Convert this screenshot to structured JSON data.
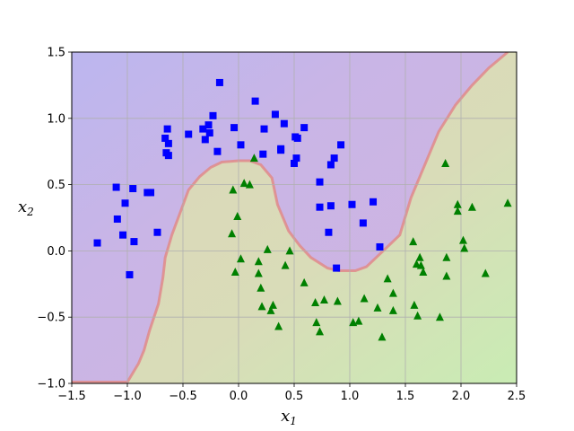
{
  "chart_data": {
    "type": "scatter",
    "title": "",
    "xlabel": "x",
    "xlabel_sub": "1",
    "ylabel": "x",
    "ylabel_sub": "2",
    "xlim": [
      -1.5,
      2.5
    ],
    "ylim": [
      -1.0,
      1.5
    ],
    "xticks": [
      -1.5,
      -1.0,
      -0.5,
      0.0,
      0.5,
      1.0,
      1.5,
      2.0,
      2.5
    ],
    "xtick_labels": [
      "−1.5",
      "−1.0",
      "−0.5",
      "0.0",
      "0.5",
      "1.0",
      "1.5",
      "2.0",
      "2.5"
    ],
    "yticks": [
      -1.0,
      -0.5,
      0.0,
      0.5,
      1.0,
      1.5
    ],
    "ytick_labels": [
      "−1.0",
      "−0.5",
      "0.0",
      "0.5",
      "1.0",
      "1.5"
    ],
    "grid": true,
    "colors": {
      "class0_marker": "#0000ff",
      "class1_marker": "#008000",
      "region_class0": "#c9b5e6",
      "region_class1": "#d9dcb8",
      "region_class0_corner": "#bcb6ef",
      "region_class1_corner": "#c9ecb4",
      "boundary": "#e08a8a"
    },
    "decision_boundary": [
      [
        -1.5,
        -0.99
      ],
      [
        -1.0,
        -0.99
      ],
      [
        -0.9,
        -0.85
      ],
      [
        -0.85,
        -0.75
      ],
      [
        -0.8,
        -0.6
      ],
      [
        -0.72,
        -0.4
      ],
      [
        -0.68,
        -0.2
      ],
      [
        -0.66,
        -0.05
      ],
      [
        -0.6,
        0.12
      ],
      [
        -0.52,
        0.3
      ],
      [
        -0.45,
        0.46
      ],
      [
        -0.35,
        0.56
      ],
      [
        -0.25,
        0.63
      ],
      [
        -0.15,
        0.67
      ],
      [
        0.0,
        0.68
      ],
      [
        0.1,
        0.68
      ],
      [
        0.2,
        0.65
      ],
      [
        0.3,
        0.55
      ],
      [
        0.35,
        0.35
      ],
      [
        0.45,
        0.15
      ],
      [
        0.55,
        0.04
      ],
      [
        0.65,
        -0.05
      ],
      [
        0.8,
        -0.13
      ],
      [
        0.9,
        -0.15
      ],
      [
        1.05,
        -0.15
      ],
      [
        1.15,
        -0.12
      ],
      [
        1.3,
        0.0
      ],
      [
        1.45,
        0.12
      ],
      [
        1.55,
        0.4
      ],
      [
        1.7,
        0.7
      ],
      [
        1.8,
        0.9
      ],
      [
        1.95,
        1.1
      ],
      [
        2.1,
        1.25
      ],
      [
        2.25,
        1.38
      ],
      [
        2.35,
        1.45
      ],
      [
        2.42,
        1.5
      ]
    ],
    "series": [
      {
        "marker": "square",
        "points": [
          [
            -1.27,
            0.06
          ],
          [
            -1.1,
            0.48
          ],
          [
            -1.09,
            0.24
          ],
          [
            -1.04,
            0.12
          ],
          [
            -1.02,
            0.36
          ],
          [
            -0.98,
            -0.18
          ],
          [
            -0.95,
            0.47
          ],
          [
            -0.94,
            0.07
          ],
          [
            -0.82,
            0.44
          ],
          [
            -0.79,
            0.44
          ],
          [
            -0.73,
            0.14
          ],
          [
            -0.66,
            0.85
          ],
          [
            -0.65,
            0.74
          ],
          [
            -0.64,
            0.92
          ],
          [
            -0.63,
            0.81
          ],
          [
            -0.63,
            0.72
          ],
          [
            -0.45,
            0.88
          ],
          [
            -0.32,
            0.92
          ],
          [
            -0.3,
            0.84
          ],
          [
            -0.27,
            0.95
          ],
          [
            -0.26,
            0.89
          ],
          [
            -0.23,
            1.02
          ],
          [
            -0.19,
            0.75
          ],
          [
            -0.17,
            1.27
          ],
          [
            -0.04,
            0.93
          ],
          [
            0.02,
            0.8
          ],
          [
            0.15,
            1.13
          ],
          [
            0.22,
            0.73
          ],
          [
            0.23,
            0.92
          ],
          [
            0.33,
            1.03
          ],
          [
            0.38,
            0.77
          ],
          [
            0.38,
            0.76
          ],
          [
            0.41,
            0.96
          ],
          [
            0.5,
            0.66
          ],
          [
            0.51,
            0.86
          ],
          [
            0.52,
            0.7
          ],
          [
            0.53,
            0.85
          ],
          [
            0.59,
            0.93
          ],
          [
            0.73,
            0.52
          ],
          [
            0.73,
            0.33
          ],
          [
            0.81,
            0.14
          ],
          [
            0.83,
            0.34
          ],
          [
            0.83,
            0.65
          ],
          [
            0.86,
            0.7
          ],
          [
            0.88,
            -0.13
          ],
          [
            0.92,
            0.8
          ],
          [
            1.02,
            0.35
          ],
          [
            1.12,
            0.21
          ],
          [
            1.21,
            0.37
          ],
          [
            1.27,
            0.03
          ]
        ]
      },
      {
        "marker": "triangle",
        "points": [
          [
            -0.05,
            0.46
          ],
          [
            -0.06,
            0.13
          ],
          [
            -0.03,
            -0.16
          ],
          [
            -0.01,
            0.26
          ],
          [
            0.02,
            -0.06
          ],
          [
            0.05,
            0.51
          ],
          [
            0.1,
            0.5
          ],
          [
            0.14,
            0.7
          ],
          [
            0.18,
            -0.08
          ],
          [
            0.18,
            -0.17
          ],
          [
            0.2,
            -0.28
          ],
          [
            0.21,
            -0.42
          ],
          [
            0.26,
            0.01
          ],
          [
            0.29,
            -0.45
          ],
          [
            0.31,
            -0.41
          ],
          [
            0.36,
            -0.57
          ],
          [
            0.42,
            -0.11
          ],
          [
            0.46,
            0.0
          ],
          [
            0.59,
            -0.24
          ],
          [
            0.69,
            -0.39
          ],
          [
            0.7,
            -0.54
          ],
          [
            0.73,
            -0.61
          ],
          [
            0.77,
            -0.37
          ],
          [
            0.89,
            -0.38
          ],
          [
            1.03,
            -0.54
          ],
          [
            1.08,
            -0.53
          ],
          [
            1.13,
            -0.36
          ],
          [
            1.25,
            -0.43
          ],
          [
            1.29,
            -0.65
          ],
          [
            1.34,
            -0.21
          ],
          [
            1.39,
            -0.32
          ],
          [
            1.39,
            -0.45
          ],
          [
            1.57,
            0.07
          ],
          [
            1.58,
            -0.41
          ],
          [
            1.6,
            -0.1
          ],
          [
            1.61,
            -0.49
          ],
          [
            1.63,
            -0.05
          ],
          [
            1.64,
            -0.11
          ],
          [
            1.66,
            -0.16
          ],
          [
            1.81,
            -0.5
          ],
          [
            1.86,
            0.66
          ],
          [
            1.87,
            -0.05
          ],
          [
            1.87,
            -0.19
          ],
          [
            1.97,
            0.35
          ],
          [
            1.97,
            0.3
          ],
          [
            2.02,
            0.08
          ],
          [
            2.03,
            0.02
          ],
          [
            2.1,
            0.33
          ],
          [
            2.22,
            -0.17
          ],
          [
            2.42,
            0.36
          ]
        ]
      }
    ]
  }
}
